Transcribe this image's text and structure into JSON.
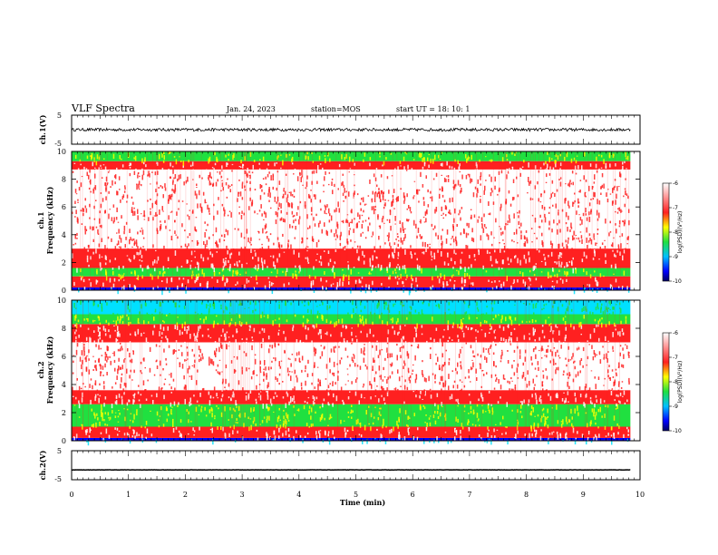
{
  "header": {
    "title": "VLF Spectra",
    "date": "Jan. 24, 2023",
    "station": "station=MOS",
    "start": "start UT =  18: 10: 1"
  },
  "colors": {
    "wave": "#000000",
    "spec_bg": "#ffffff",
    "spec_red": "#ff2020",
    "spec_yellow": "#ffff00",
    "spec_green": "#20e040",
    "spec_cyan": "#00e0ff",
    "spec_blue": "#0000ff"
  },
  "chart_data": [
    {
      "type": "line",
      "id": "ch1",
      "ylabel": "ch.1(V)",
      "ylim": [
        -5,
        5
      ],
      "yticks": [
        "5",
        "-5"
      ],
      "xlim": [
        0,
        10
      ],
      "x_end": 9.83,
      "mean": 0,
      "noise": 0.5
    },
    {
      "type": "heatmap",
      "id": "spec1",
      "ylabel_line1": "ch.1",
      "ylabel_line2": "Frequency (kHz)",
      "ylim": [
        0,
        10
      ],
      "yticks": [
        "0",
        "2",
        "4",
        "6",
        "8",
        "10"
      ],
      "xlim": [
        0,
        10
      ],
      "x_end": 9.83,
      "colorbar": {
        "label": "log(PSD)(V²/Hz)",
        "range": [
          -10,
          -6
        ],
        "ticks": [
          "-6",
          "-7",
          "-8",
          "-9",
          "-10"
        ]
      },
      "bands_khz": [
        {
          "from": 0,
          "to": 0.2,
          "level": "blue"
        },
        {
          "from": 0.2,
          "to": 1.0,
          "level": "red"
        },
        {
          "from": 1.0,
          "to": 1.6,
          "level": "green"
        },
        {
          "from": 1.6,
          "to": 3.0,
          "level": "red"
        },
        {
          "from": 3.0,
          "to": 8.7,
          "level": "white"
        },
        {
          "from": 8.7,
          "to": 9.3,
          "level": "red"
        },
        {
          "from": 9.3,
          "to": 10,
          "level": "green"
        }
      ]
    },
    {
      "type": "heatmap",
      "id": "spec2",
      "ylabel_line1": "ch.2",
      "ylabel_line2": "Frequency (kHz)",
      "ylim": [
        0,
        10
      ],
      "yticks": [
        "0",
        "2",
        "4",
        "6",
        "8",
        "10"
      ],
      "xlim": [
        0,
        10
      ],
      "x_end": 9.83,
      "colorbar": {
        "label": "log(PSD)(V²/Hz)",
        "range": [
          -10,
          -6
        ],
        "ticks": [
          "-6",
          "-7",
          "-8",
          "-9",
          "-10"
        ]
      },
      "bands_khz": [
        {
          "from": 0,
          "to": 0.2,
          "level": "blue"
        },
        {
          "from": 0.2,
          "to": 1.0,
          "level": "red"
        },
        {
          "from": 1.0,
          "to": 2.6,
          "level": "green"
        },
        {
          "from": 2.6,
          "to": 3.6,
          "level": "red"
        },
        {
          "from": 3.6,
          "to": 7.0,
          "level": "white"
        },
        {
          "from": 7.0,
          "to": 8.3,
          "level": "red"
        },
        {
          "from": 8.3,
          "to": 9.0,
          "level": "green"
        },
        {
          "from": 9.0,
          "to": 10,
          "level": "cyan"
        }
      ]
    },
    {
      "type": "line",
      "id": "ch2",
      "ylabel": "ch.2(V)",
      "ylim": [
        -5,
        5
      ],
      "yticks": [
        "5",
        "-5"
      ],
      "xlim": [
        0,
        10
      ],
      "x_end": 9.83,
      "mean": -1.6,
      "noise": 0.05
    }
  ],
  "xaxis": {
    "label": "Time (min)",
    "ticks": [
      "0",
      "1",
      "2",
      "3",
      "4",
      "5",
      "6",
      "7",
      "8",
      "9",
      "10"
    ]
  }
}
